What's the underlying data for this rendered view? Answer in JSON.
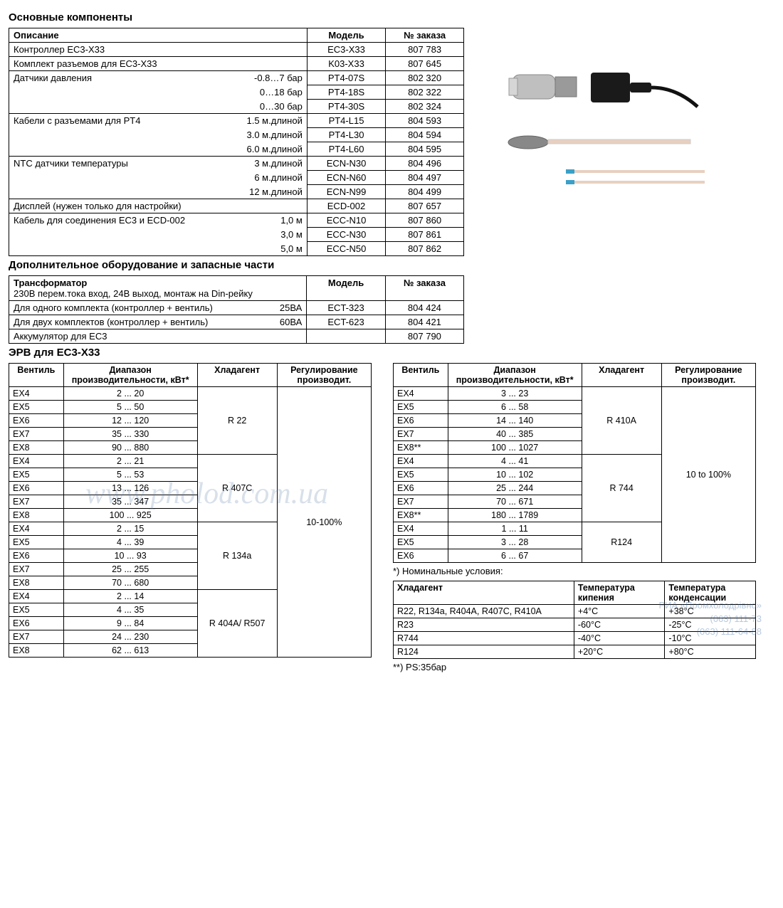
{
  "titles": {
    "main_components": "Основные компоненты",
    "additional": "Дополнительное оборудование и запасные части",
    "erv": "ЭРВ для EC3-X33"
  },
  "headers": {
    "description": "Описание",
    "model": "Модель",
    "order": "№ заказа",
    "valve": "Вентиль",
    "range": "Диапазон производительности, кВт*",
    "refrigerant": "Хладагент",
    "regulation": "Регулирование производит.",
    "temp_boil": "Температура кипения",
    "temp_cond": "Температура конденсации"
  },
  "components": [
    {
      "desc": "Контроллер EC3-X33",
      "val": "",
      "model": "EC3-X33",
      "order": "807 783",
      "first": true
    },
    {
      "desc": "Комплект разъемов для EC3-X33",
      "val": "",
      "model": "K03-X33",
      "order": "807 645",
      "first": true
    },
    {
      "desc": "Датчики давления",
      "val": "-0.8…7 бар",
      "model": "PT4-07S",
      "order": "802 320",
      "first": true
    },
    {
      "desc": "",
      "val": "0…18 бар",
      "model": "PT4-18S",
      "order": "802 322"
    },
    {
      "desc": "",
      "val": "0…30 бар",
      "model": "PT4-30S",
      "order": "802 324"
    },
    {
      "desc": "Кабели с разъемами для PT4",
      "val": "1.5 м.длиной",
      "model": "PT4-L15",
      "order": "804 593",
      "first": true
    },
    {
      "desc": "",
      "val": "3.0 м.длиной",
      "model": "PT4-L30",
      "order": "804 594"
    },
    {
      "desc": "",
      "val": "6.0 м.длиной",
      "model": "PT4-L60",
      "order": "804 595"
    },
    {
      "desc": "NTC датчики температуры",
      "val": "3 м.длиной",
      "model": "ECN-N30",
      "order": "804 496",
      "first": true
    },
    {
      "desc": "",
      "val": "6 м.длиной",
      "model": "ECN-N60",
      "order": "804 497"
    },
    {
      "desc": "",
      "val": "12 м.длиной",
      "model": "ECN-N99",
      "order": "804 499"
    },
    {
      "desc": "Дисплей (нужен только для настройки)",
      "val": "",
      "model": "ECD-002",
      "order": "807 657",
      "first": true
    },
    {
      "desc": "Кабель для соединения EC3 и ECD-002",
      "val": "1,0 м",
      "model": "ECC-N10",
      "order": "807 860",
      "first": true
    },
    {
      "desc": "",
      "val": "3,0 м",
      "model": "ECC-N30",
      "order": "807 861"
    },
    {
      "desc": "",
      "val": "5,0 м",
      "model": "ECC-N50",
      "order": "807 862"
    }
  ],
  "additional_header_desc": "Трансформатор\n230В перем.тока вход, 24В выход, монтаж на Din-рейку",
  "additional": [
    {
      "desc": "Для одного комплекта (контроллер + вентиль)",
      "val": "25ВА",
      "model": "ECT-323",
      "order": "804 424"
    },
    {
      "desc": "Для двух комплектов (контроллер + вентиль)",
      "val": "60ВА",
      "model": "ECT-623",
      "order": "804 421"
    },
    {
      "desc": "Аккумулятор для EC3",
      "val": "",
      "model": "",
      "order": "807 790"
    }
  ],
  "erv_left": {
    "groups": [
      {
        "refrigerant": "R 22",
        "rows": [
          {
            "v": "EX4",
            "r": "2 ... 20"
          },
          {
            "v": "EX5",
            "r": "5 ... 50"
          },
          {
            "v": "EX6",
            "r": "12 ... 120"
          },
          {
            "v": "EX7",
            "r": "35 ... 330"
          },
          {
            "v": "EX8",
            "r": "90 ... 880"
          }
        ]
      },
      {
        "refrigerant": "R 407C",
        "rows": [
          {
            "v": "EX4",
            "r": "2 ... 21"
          },
          {
            "v": "EX5",
            "r": "5 ... 53"
          },
          {
            "v": "EX6",
            "r": "13 ... 126"
          },
          {
            "v": "EX7",
            "r": "35 ... 347"
          },
          {
            "v": "EX8",
            "r": "100 ... 925"
          }
        ]
      },
      {
        "refrigerant": "R 134a",
        "rows": [
          {
            "v": "EX4",
            "r": "2 ... 15"
          },
          {
            "v": "EX5",
            "r": "4 ... 39"
          },
          {
            "v": "EX6",
            "r": "10 ... 93"
          },
          {
            "v": "EX7",
            "r": "25 ... 255"
          },
          {
            "v": "EX8",
            "r": "70 ... 680"
          }
        ]
      },
      {
        "refrigerant": "R 404A/ R507",
        "rows": [
          {
            "v": "EX4",
            "r": "2 ... 14"
          },
          {
            "v": "EX5",
            "r": "4 ... 35"
          },
          {
            "v": "EX6",
            "r": "9 ... 84"
          },
          {
            "v": "EX7",
            "r": "24 ... 230"
          },
          {
            "v": "EX8",
            "r": "62 ... 613"
          }
        ]
      }
    ],
    "regulation": "10-100%"
  },
  "erv_right": {
    "groups": [
      {
        "refrigerant": "R 410A",
        "rows": [
          {
            "v": "EX4",
            "r": "3 ... 23"
          },
          {
            "v": "EX5",
            "r": "6 ... 58"
          },
          {
            "v": "EX6",
            "r": "14 ... 140"
          },
          {
            "v": "EX7",
            "r": "40 ... 385"
          },
          {
            "v": "EX8**",
            "r": "100 ... 1027"
          }
        ]
      },
      {
        "refrigerant": "R 744",
        "rows": [
          {
            "v": "EX4",
            "r": "4 ... 41"
          },
          {
            "v": "EX5",
            "r": "10 ... 102"
          },
          {
            "v": "EX6",
            "r": "25 ... 244"
          },
          {
            "v": "EX7",
            "r": "70 ... 671"
          },
          {
            "v": "EX8**",
            "r": "180 ... 1789"
          }
        ]
      },
      {
        "refrigerant": "R124",
        "rows": [
          {
            "v": "EX4",
            "r": "1 ... 11"
          },
          {
            "v": "EX5",
            "r": "3 ... 28"
          },
          {
            "v": "EX6",
            "r": "6 ... 67"
          }
        ]
      }
    ],
    "regulation": "10 to 100%"
  },
  "notes": {
    "nominal": "*) Номинальные условия:",
    "ps": "**) PS:35бар"
  },
  "conditions": [
    {
      "ref": "R22, R134a, R404A, R407C, R410A",
      "boil": "+4°C",
      "cond": "+38°C"
    },
    {
      "ref": "R23",
      "boil": "-60°C",
      "cond": "-25°C"
    },
    {
      "ref": "R744",
      "boil": "-40°C",
      "cond": "-10°C"
    },
    {
      "ref": "R124",
      "boil": "+20°C",
      "cond": "+80°C"
    }
  ],
  "watermark": "www.pholod.com.ua",
  "bottom_wm": "РИА «Промхолодрівно»\n(063) 111-73\n(063) 111-64-88"
}
